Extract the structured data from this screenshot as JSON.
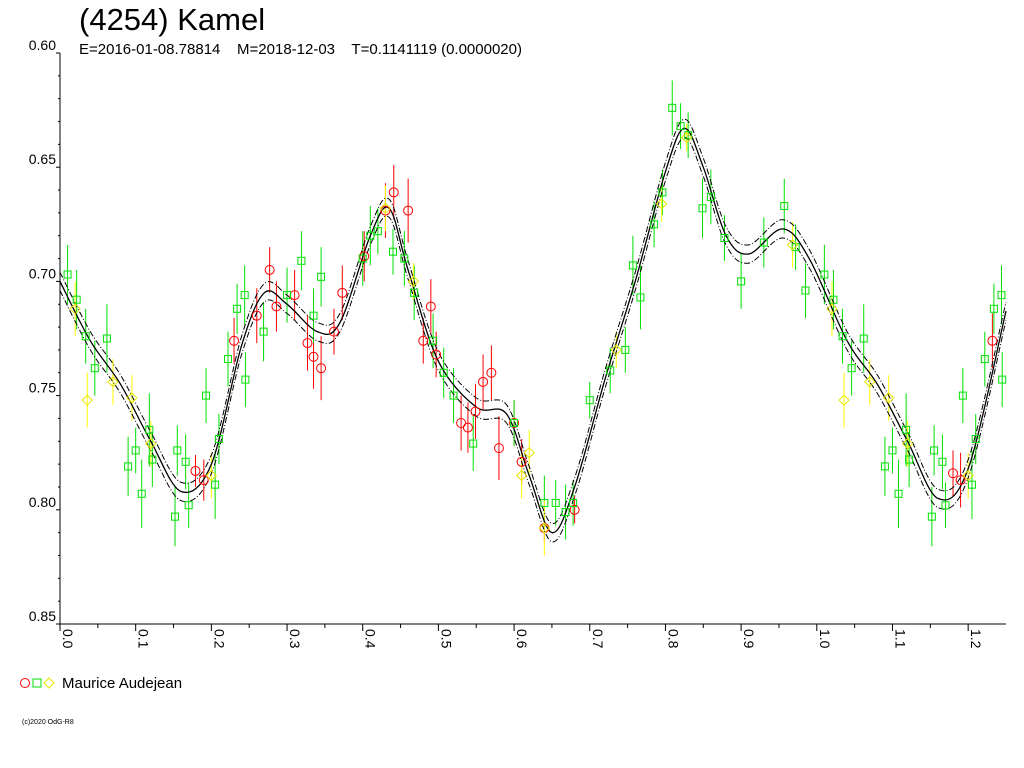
{
  "title": "(4254) Kamel",
  "subtitle": "E=2016-01-08.78814    M=2018-12-03    T=0.1141119 (0.0000020)",
  "legend": {
    "observer": "Maurice Audejean"
  },
  "copyright": "(c)2020 OdG-R8",
  "colors": {
    "red": "#ff0000",
    "green": "#00e000",
    "yellow": "#ffff00",
    "curve": "#000000"
  },
  "chart_data": {
    "type": "scatter",
    "xlim": [
      0.0,
      1.25
    ],
    "ylim": [
      0.6,
      0.85
    ],
    "y_inverted": true,
    "x_tick_labels": [
      "0.0",
      "0.1",
      "0.2",
      "0.3",
      "0.4",
      "0.5",
      "0.6",
      "0.7",
      "0.8",
      "0.9",
      "1.0",
      "1.1",
      "1.2"
    ],
    "y_tick_labels": [
      "0.60",
      "0.65",
      "0.70",
      "0.75",
      "0.80",
      "0.85"
    ],
    "fit_curve": {
      "x": [
        0.0,
        0.04,
        0.08,
        0.12,
        0.16,
        0.2,
        0.24,
        0.27,
        0.3,
        0.34,
        0.37,
        0.41,
        0.435,
        0.46,
        0.5,
        0.55,
        0.59,
        0.62,
        0.65,
        0.68,
        0.72,
        0.76,
        0.8,
        0.825,
        0.85,
        0.88,
        0.91,
        0.955,
        0.99,
        1.04,
        1.08,
        1.12,
        1.16,
        1.2,
        1.25
      ],
      "y": [
        0.7,
        0.726,
        0.745,
        0.77,
        0.792,
        0.78,
        0.728,
        0.705,
        0.71,
        0.722,
        0.718,
        0.68,
        0.668,
        0.695,
        0.735,
        0.755,
        0.758,
        0.785,
        0.81,
        0.79,
        0.743,
        0.7,
        0.652,
        0.633,
        0.65,
        0.68,
        0.688,
        0.677,
        0.69,
        0.726,
        0.745,
        0.77,
        0.795,
        0.782,
        0.713
      ],
      "band_width": 0.004
    },
    "series": [
      {
        "marker": "circle",
        "color": "red",
        "points": [
          {
            "x": 0.179,
            "y": 0.783,
            "e": 0.007
          },
          {
            "x": 0.19,
            "y": 0.787,
            "e": 0.009
          },
          {
            "x": 0.23,
            "y": 0.726,
            "e": 0.01
          },
          {
            "x": 0.26,
            "y": 0.715,
            "e": 0.012
          },
          {
            "x": 0.277,
            "y": 0.695,
            "e": 0.01
          },
          {
            "x": 0.286,
            "y": 0.711,
            "e": 0.011
          },
          {
            "x": 0.31,
            "y": 0.706,
            "e": 0.011
          },
          {
            "x": 0.327,
            "y": 0.727,
            "e": 0.012
          },
          {
            "x": 0.335,
            "y": 0.733,
            "e": 0.014
          },
          {
            "x": 0.345,
            "y": 0.738,
            "e": 0.014
          },
          {
            "x": 0.362,
            "y": 0.722,
            "e": 0.01
          },
          {
            "x": 0.373,
            "y": 0.705,
            "e": 0.012
          },
          {
            "x": 0.402,
            "y": 0.689,
            "e": 0.011
          },
          {
            "x": 0.43,
            "y": 0.669,
            "e": 0.012
          },
          {
            "x": 0.441,
            "y": 0.661,
            "e": 0.012
          },
          {
            "x": 0.46,
            "y": 0.669,
            "e": 0.014
          },
          {
            "x": 0.48,
            "y": 0.726,
            "e": 0.01
          },
          {
            "x": 0.49,
            "y": 0.711,
            "e": 0.012
          },
          {
            "x": 0.497,
            "y": 0.732,
            "e": 0.01
          },
          {
            "x": 0.53,
            "y": 0.762,
            "e": 0.012
          },
          {
            "x": 0.539,
            "y": 0.764,
            "e": 0.011
          },
          {
            "x": 0.549,
            "y": 0.757,
            "e": 0.012
          },
          {
            "x": 0.559,
            "y": 0.744,
            "e": 0.012
          },
          {
            "x": 0.57,
            "y": 0.74,
            "e": 0.012
          },
          {
            "x": 0.58,
            "y": 0.773,
            "e": 0.014
          },
          {
            "x": 0.6,
            "y": 0.762,
            "e": 0.01
          },
          {
            "x": 0.61,
            "y": 0.779,
            "e": 0.01
          },
          {
            "x": 0.64,
            "y": 0.808,
            "e": 0.006
          },
          {
            "x": 0.68,
            "y": 0.8,
            "e": 0.006
          },
          {
            "x": 1.18,
            "y": 0.784,
            "e": 0.01
          },
          {
            "x": 1.19,
            "y": 0.787,
            "e": 0.012
          },
          {
            "x": 1.232,
            "y": 0.726,
            "e": 0.012
          }
        ]
      },
      {
        "marker": "square",
        "color": "green",
        "points": [
          {
            "x": 0.01,
            "y": 0.697,
            "e": 0.013
          },
          {
            "x": 0.022,
            "y": 0.708,
            "e": 0.013
          },
          {
            "x": 0.034,
            "y": 0.724,
            "e": 0.012
          },
          {
            "x": 0.046,
            "y": 0.738,
            "e": 0.012
          },
          {
            "x": 0.062,
            "y": 0.725,
            "e": 0.015
          },
          {
            "x": 0.09,
            "y": 0.781,
            "e": 0.013
          },
          {
            "x": 0.1,
            "y": 0.774,
            "e": 0.01
          },
          {
            "x": 0.108,
            "y": 0.793,
            "e": 0.015
          },
          {
            "x": 0.118,
            "y": 0.765,
            "e": 0.016
          },
          {
            "x": 0.122,
            "y": 0.778,
            "e": 0.012
          },
          {
            "x": 0.152,
            "y": 0.803,
            "e": 0.013
          },
          {
            "x": 0.155,
            "y": 0.774,
            "e": 0.011
          },
          {
            "x": 0.166,
            "y": 0.779,
            "e": 0.012
          },
          {
            "x": 0.17,
            "y": 0.798,
            "e": 0.01
          },
          {
            "x": 0.193,
            "y": 0.75,
            "e": 0.012
          },
          {
            "x": 0.205,
            "y": 0.789,
            "e": 0.015
          },
          {
            "x": 0.21,
            "y": 0.769,
            "e": 0.011
          },
          {
            "x": 0.222,
            "y": 0.734,
            "e": 0.012
          },
          {
            "x": 0.234,
            "y": 0.712,
            "e": 0.011
          },
          {
            "x": 0.244,
            "y": 0.706,
            "e": 0.013
          },
          {
            "x": 0.245,
            "y": 0.743,
            "e": 0.012
          },
          {
            "x": 0.269,
            "y": 0.722,
            "e": 0.013
          },
          {
            "x": 0.3,
            "y": 0.706,
            "e": 0.012
          },
          {
            "x": 0.319,
            "y": 0.691,
            "e": 0.013
          },
          {
            "x": 0.335,
            "y": 0.715,
            "e": 0.012
          },
          {
            "x": 0.345,
            "y": 0.698,
            "e": 0.013
          },
          {
            "x": 0.4,
            "y": 0.69,
            "e": 0.012
          },
          {
            "x": 0.41,
            "y": 0.68,
            "e": 0.013
          },
          {
            "x": 0.42,
            "y": 0.678,
            "e": 0.01
          },
          {
            "x": 0.44,
            "y": 0.687,
            "e": 0.01
          },
          {
            "x": 0.455,
            "y": 0.69,
            "e": 0.012
          },
          {
            "x": 0.468,
            "y": 0.705,
            "e": 0.012
          },
          {
            "x": 0.493,
            "y": 0.726,
            "e": 0.012
          },
          {
            "x": 0.507,
            "y": 0.74,
            "e": 0.011
          },
          {
            "x": 0.52,
            "y": 0.75,
            "e": 0.012
          },
          {
            "x": 0.546,
            "y": 0.771,
            "e": 0.012
          },
          {
            "x": 0.6,
            "y": 0.762,
            "e": 0.01
          },
          {
            "x": 0.64,
            "y": 0.797,
            "e": 0.012
          },
          {
            "x": 0.655,
            "y": 0.797,
            "e": 0.01
          },
          {
            "x": 0.668,
            "y": 0.801,
            "e": 0.012
          },
          {
            "x": 0.678,
            "y": 0.797,
            "e": 0.01
          },
          {
            "x": 0.7,
            "y": 0.752,
            "e": 0.008
          },
          {
            "x": 0.727,
            "y": 0.739,
            "e": 0.01
          },
          {
            "x": 0.747,
            "y": 0.73,
            "e": 0.01
          },
          {
            "x": 0.757,
            "y": 0.693,
            "e": 0.013
          },
          {
            "x": 0.767,
            "y": 0.707,
            "e": 0.014
          },
          {
            "x": 0.785,
            "y": 0.675,
            "e": 0.01
          },
          {
            "x": 0.796,
            "y": 0.661,
            "e": 0.01
          },
          {
            "x": 0.809,
            "y": 0.624,
            "e": 0.012
          },
          {
            "x": 0.82,
            "y": 0.632,
            "e": 0.01
          },
          {
            "x": 0.83,
            "y": 0.636,
            "e": 0.01
          },
          {
            "x": 0.849,
            "y": 0.668,
            "e": 0.013
          },
          {
            "x": 0.86,
            "y": 0.663,
            "e": 0.012
          },
          {
            "x": 0.878,
            "y": 0.681,
            "e": 0.01
          },
          {
            "x": 0.9,
            "y": 0.7,
            "e": 0.012
          },
          {
            "x": 0.93,
            "y": 0.683,
            "e": 0.011
          },
          {
            "x": 0.957,
            "y": 0.667,
            "e": 0.012
          },
          {
            "x": 0.972,
            "y": 0.685,
            "e": 0.01
          },
          {
            "x": 0.985,
            "y": 0.704,
            "e": 0.012
          },
          {
            "x": 1.01,
            "y": 0.697,
            "e": 0.013
          },
          {
            "x": 1.022,
            "y": 0.708,
            "e": 0.013
          },
          {
            "x": 1.034,
            "y": 0.724,
            "e": 0.012
          },
          {
            "x": 1.046,
            "y": 0.738,
            "e": 0.012
          },
          {
            "x": 1.062,
            "y": 0.725,
            "e": 0.015
          },
          {
            "x": 1.09,
            "y": 0.781,
            "e": 0.013
          },
          {
            "x": 1.1,
            "y": 0.774,
            "e": 0.01
          },
          {
            "x": 1.108,
            "y": 0.793,
            "e": 0.015
          },
          {
            "x": 1.118,
            "y": 0.765,
            "e": 0.016
          },
          {
            "x": 1.122,
            "y": 0.778,
            "e": 0.012
          },
          {
            "x": 1.152,
            "y": 0.803,
            "e": 0.013
          },
          {
            "x": 1.155,
            "y": 0.774,
            "e": 0.011
          },
          {
            "x": 1.166,
            "y": 0.779,
            "e": 0.012
          },
          {
            "x": 1.17,
            "y": 0.798,
            "e": 0.01
          },
          {
            "x": 1.193,
            "y": 0.75,
            "e": 0.012
          },
          {
            "x": 1.205,
            "y": 0.789,
            "e": 0.015
          },
          {
            "x": 1.21,
            "y": 0.769,
            "e": 0.011
          },
          {
            "x": 1.222,
            "y": 0.734,
            "e": 0.012
          },
          {
            "x": 1.234,
            "y": 0.712,
            "e": 0.011
          },
          {
            "x": 1.244,
            "y": 0.706,
            "e": 0.013
          },
          {
            "x": 1.245,
            "y": 0.743,
            "e": 0.012
          }
        ]
      },
      {
        "marker": "diamond",
        "color": "yellow",
        "points": [
          {
            "x": 0.02,
            "y": 0.712,
            "e": 0.012
          },
          {
            "x": 0.036,
            "y": 0.752,
            "e": 0.012
          },
          {
            "x": 0.07,
            "y": 0.744,
            "e": 0.01
          },
          {
            "x": 0.095,
            "y": 0.751,
            "e": 0.01
          },
          {
            "x": 0.12,
            "y": 0.771,
            "e": 0.01
          },
          {
            "x": 0.2,
            "y": 0.785,
            "e": 0.01
          },
          {
            "x": 0.43,
            "y": 0.668,
            "e": 0.01
          },
          {
            "x": 0.467,
            "y": 0.7,
            "e": 0.008
          },
          {
            "x": 0.61,
            "y": 0.785,
            "e": 0.01
          },
          {
            "x": 0.62,
            "y": 0.775,
            "e": 0.01
          },
          {
            "x": 0.64,
            "y": 0.808,
            "e": 0.012
          },
          {
            "x": 0.735,
            "y": 0.73,
            "e": 0.008
          },
          {
            "x": 0.795,
            "y": 0.666,
            "e": 0.008
          },
          {
            "x": 0.828,
            "y": 0.637,
            "e": 0.006
          },
          {
            "x": 0.968,
            "y": 0.684,
            "e": 0.01
          },
          {
            "x": 1.02,
            "y": 0.712,
            "e": 0.012
          },
          {
            "x": 1.036,
            "y": 0.752,
            "e": 0.012
          },
          {
            "x": 1.07,
            "y": 0.744,
            "e": 0.01
          },
          {
            "x": 1.095,
            "y": 0.751,
            "e": 0.01
          },
          {
            "x": 1.12,
            "y": 0.771,
            "e": 0.01
          },
          {
            "x": 1.2,
            "y": 0.785,
            "e": 0.01
          }
        ]
      }
    ]
  }
}
